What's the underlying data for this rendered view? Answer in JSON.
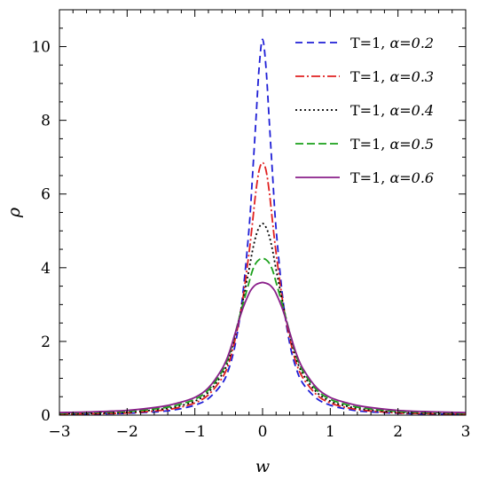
{
  "chart_data": {
    "type": "line",
    "title": "",
    "xlabel": "w",
    "ylabel": "ρ",
    "xlim": [
      -3,
      3
    ],
    "ylim": [
      0,
      11
    ],
    "xticks": [
      -3,
      -2,
      -1,
      0,
      1,
      2,
      3
    ],
    "yticks": [
      0,
      2,
      4,
      6,
      8,
      10
    ],
    "xtick_labels": [
      "−3",
      "−2",
      "−1",
      "0",
      "1",
      "2",
      "3"
    ],
    "ytick_labels": [
      "0",
      "2",
      "4",
      "6",
      "8",
      "10"
    ],
    "grid": false,
    "legend_position": "top-right",
    "x": [
      -3,
      -2.5,
      -2,
      -1.5,
      -1.25,
      -1,
      -0.8,
      -0.6,
      -0.5,
      -0.4,
      -0.3,
      -0.2,
      -0.15,
      -0.1,
      -0.05,
      0,
      0.05,
      0.1,
      0.15,
      0.2,
      0.3,
      0.4,
      0.5,
      0.6,
      0.8,
      1,
      1.25,
      1.5,
      2,
      2.5,
      3
    ],
    "series": [
      {
        "name": "T=1, α=0.2",
        "prefix": "T=1, ",
        "alpha_label": "α=0.2",
        "color": "#1f1fd6",
        "dash": "8,5",
        "values": [
          0.02,
          0.03,
          0.05,
          0.1,
          0.16,
          0.27,
          0.45,
          0.85,
          1.25,
          1.95,
          3.15,
          5.05,
          6.45,
          7.95,
          9.45,
          10.2,
          9.45,
          7.95,
          6.45,
          5.05,
          3.15,
          1.95,
          1.25,
          0.85,
          0.45,
          0.27,
          0.16,
          0.1,
          0.05,
          0.03,
          0.02
        ]
      },
      {
        "name": "T=1, α=0.3",
        "prefix": "T=1, ",
        "alpha_label": "α=0.3",
        "color": "#e02020",
        "dash": "10,3,2,3",
        "values": [
          0.03,
          0.04,
          0.06,
          0.13,
          0.2,
          0.33,
          0.55,
          1.0,
          1.4,
          2.1,
          3.05,
          4.4,
          5.2,
          6.05,
          6.65,
          6.85,
          6.65,
          6.05,
          5.2,
          4.4,
          3.05,
          2.1,
          1.4,
          1.0,
          0.55,
          0.33,
          0.2,
          0.13,
          0.06,
          0.04,
          0.03
        ]
      },
      {
        "name": "T=1, α=0.4",
        "prefix": "T=1, ",
        "alpha_label": "α=0.4",
        "color": "#000000",
        "dash": "2,3",
        "values": [
          0.04,
          0.05,
          0.08,
          0.16,
          0.24,
          0.38,
          0.62,
          1.1,
          1.52,
          2.2,
          3.02,
          3.95,
          4.45,
          4.85,
          5.1,
          5.2,
          5.1,
          4.85,
          4.45,
          3.95,
          3.02,
          2.2,
          1.52,
          1.1,
          0.62,
          0.38,
          0.24,
          0.16,
          0.08,
          0.05,
          0.04
        ]
      },
      {
        "name": "T=1, α=0.5",
        "prefix": "T=1, ",
        "alpha_label": "α=0.5",
        "color": "#1aa01a",
        "dash": "9,4",
        "values": [
          0.05,
          0.07,
          0.1,
          0.19,
          0.28,
          0.43,
          0.68,
          1.18,
          1.6,
          2.25,
          2.95,
          3.6,
          3.92,
          4.12,
          4.22,
          4.25,
          4.22,
          4.12,
          3.92,
          3.6,
          2.95,
          2.25,
          1.6,
          1.18,
          0.68,
          0.43,
          0.28,
          0.19,
          0.1,
          0.07,
          0.05
        ]
      },
      {
        "name": "T=1, α=0.6",
        "prefix": "T=1, ",
        "alpha_label": "α=0.6",
        "color": "#8a1f8a",
        "dash": "",
        "values": [
          0.07,
          0.09,
          0.13,
          0.23,
          0.33,
          0.48,
          0.74,
          1.25,
          1.66,
          2.25,
          2.85,
          3.3,
          3.45,
          3.54,
          3.58,
          3.6,
          3.58,
          3.54,
          3.45,
          3.3,
          2.85,
          2.25,
          1.66,
          1.25,
          0.74,
          0.48,
          0.33,
          0.23,
          0.13,
          0.09,
          0.07
        ]
      }
    ]
  }
}
